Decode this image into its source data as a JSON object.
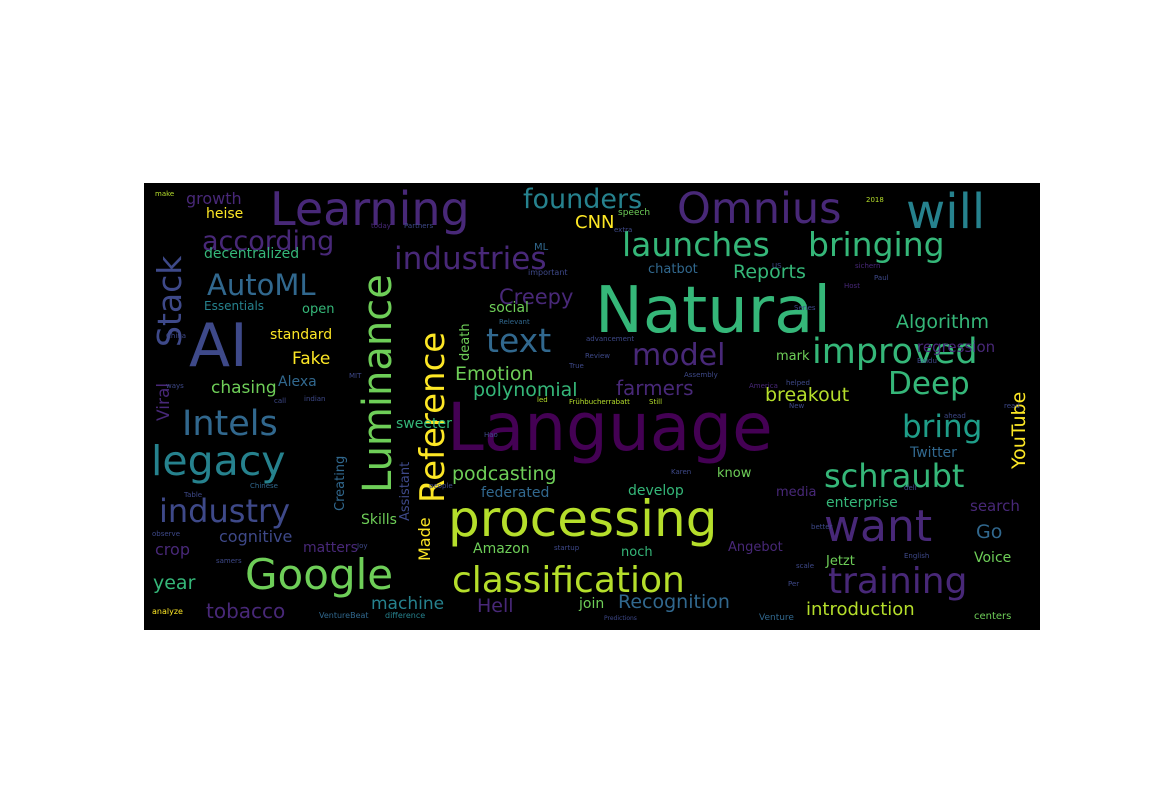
{
  "colors": {
    "background": "#000000",
    "palette": [
      "#440154",
      "#482878",
      "#3e4989",
      "#31688e",
      "#26828e",
      "#1f9e89",
      "#35b779",
      "#6ece58",
      "#b5de2b",
      "#fde725"
    ]
  },
  "words": {
    "language": "Language",
    "natural": "Natural",
    "processing": "processing",
    "learning": "Learning",
    "omnius": "Omnius",
    "will": "will",
    "ai": "AI",
    "google": "Google",
    "classification": "classification",
    "luminance": "Luminance",
    "reference": "Reference",
    "stack": "Stack",
    "viral": "Viral",
    "legacy": "legacy",
    "want": "want",
    "schraubt": "schraubt",
    "training": "training",
    "improved": "improved",
    "launches": "launches",
    "bringing": "bringing",
    "industries": "industries",
    "industry": "industry",
    "intels": "Intels",
    "automl": "AutoML",
    "according": "according",
    "founders": "founders",
    "text": "text",
    "model": "model",
    "deep": "Deep",
    "bring": "bring",
    "youtube": "YouTube",
    "algorithm": "Algorithm",
    "reports": "Reports",
    "regression": "regression",
    "breakout": "breakout",
    "cnn": "CNN",
    "creepy": "Creepy",
    "emotion": "Emotion",
    "polynomial": "polynomial",
    "farmers": "farmers",
    "fake": "Fake",
    "chasing": "chasing",
    "alexa": "Alexa",
    "standard": "standard",
    "open": "open",
    "growth": "growth",
    "heise": "heise",
    "decentralized": "decentralized",
    "essentials": "Essentials",
    "chatbot": "chatbot",
    "mark": "mark",
    "podcasting": "podcasting",
    "federated": "federated",
    "develop": "develop",
    "media": "media",
    "know": "know",
    "enterprise": "enterprise",
    "search": "search",
    "go": "Go",
    "voice": "Voice",
    "jetzt": "Jetzt",
    "angebot": "Angebot",
    "noch": "noch",
    "amazon": "Amazon",
    "made": "Made",
    "hell": "Hell",
    "machine": "machine",
    "join": "join",
    "recognition": "Recognition",
    "introduction": "introduction",
    "tobacco": "tobacco",
    "year": "year",
    "crop": "crop",
    "cognitive": "cognitive",
    "matters": "matters",
    "skills": "Skills",
    "social": "social",
    "sweeter": "sweeter",
    "death": "death",
    "creating": "Creating",
    "assistant": "Assistant",
    "twitter": "Twitter",
    "centers": "centers",
    "venture": "Venture",
    "speech": "speech",
    "ml": "ML",
    "important": "important",
    "partners": "Partners",
    "today": "today",
    "relevant": "Relevant",
    "advancement": "advancement",
    "review": "Review",
    "assembly": "Assembly",
    "fruhbucherrabatt": "Frühbucherrabatt",
    "still": "Still",
    "led": "led",
    "helped": "helped",
    "series": "Series",
    "sichern": "sichern",
    "paul": "Paul",
    "baidu": "Baidu",
    "chinese": "Chinese",
    "karen": "Karen",
    "hao": "Hao",
    "call": "call",
    "indian": "indian",
    "startup": "startup",
    "scale": "scale",
    "english": "English",
    "observe": "observe",
    "samers": "samers",
    "analyze": "analyze",
    "venturebeat": "VentureBeat",
    "difference": "difference",
    "predictions": "Predictions",
    "make": "make",
    "extra": "extra",
    "table": "Table",
    "mit": "MIT",
    "true": "True",
    "people": "people",
    "per": "Per",
    "new": "New",
    "host": "Host",
    "china": "China",
    "us": "US",
    "2018": "2018",
    "read": "read",
    "ways": "ways",
    "joy": "Joy",
    "better": "better",
    "america": "America",
    "ahead": "ahead",
    "dell": "dell"
  }
}
